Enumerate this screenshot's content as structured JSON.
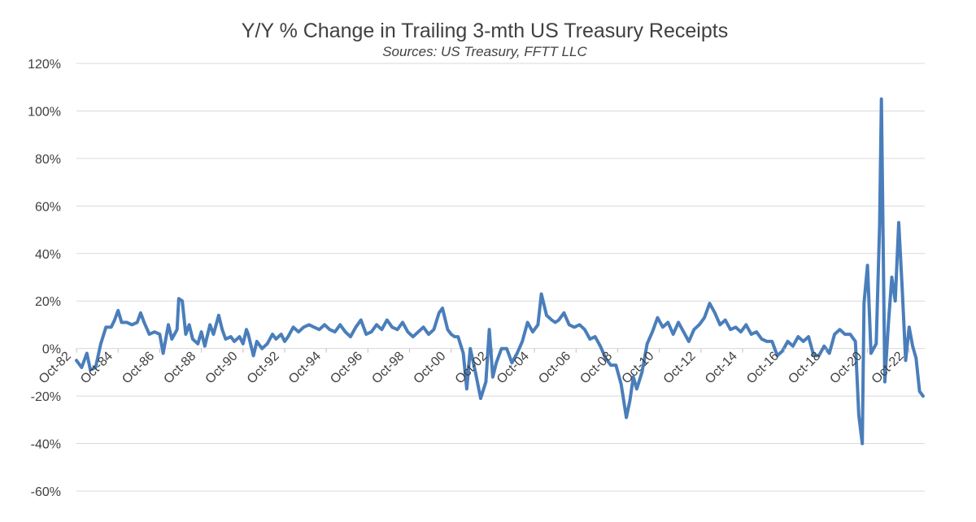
{
  "chart_data": {
    "type": "line",
    "title": "Y/Y % Change in Trailing 3-mth US Treasury Receipts",
    "subtitle": "Sources: US Treasury, FFTT LLC",
    "xlabel": "",
    "ylabel": "",
    "ylim": [
      -60,
      120
    ],
    "yticks": [
      120,
      100,
      80,
      60,
      40,
      20,
      0,
      -20,
      -40,
      -60
    ],
    "ytick_labels": [
      "120%",
      "100%",
      "80%",
      "60%",
      "40%",
      "20%",
      "0%",
      "-20%",
      "-40%",
      "-60%"
    ],
    "xlim": [
      "1982-10",
      "2023-07"
    ],
    "xticks": [
      "1982-10",
      "1984-10",
      "1986-10",
      "1988-10",
      "1990-10",
      "1992-10",
      "1994-10",
      "1996-10",
      "1998-10",
      "2000-10",
      "2002-10",
      "2004-10",
      "2006-10",
      "2008-10",
      "2010-10",
      "2012-10",
      "2014-10",
      "2016-10",
      "2018-10",
      "2020-10",
      "2022-10"
    ],
    "xtick_labels": [
      "Oct-82",
      "Oct-84",
      "Oct-86",
      "Oct-88",
      "Oct-90",
      "Oct-92",
      "Oct-94",
      "Oct-96",
      "Oct-98",
      "Oct-00",
      "Oct-02",
      "Oct-04",
      "Oct-06",
      "Oct-08",
      "Oct-10",
      "Oct-12",
      "Oct-14",
      "Oct-16",
      "Oct-18",
      "Oct-20",
      "Oct-22"
    ],
    "grid": true,
    "legend": "none",
    "series": [
      {
        "color": "#4a7ebb",
        "points": [
          [
            "1982-10",
            -5
          ],
          [
            "1983-01",
            -8
          ],
          [
            "1983-04",
            -2
          ],
          [
            "1983-06",
            -9
          ],
          [
            "1983-09",
            -8
          ],
          [
            "1983-12",
            2
          ],
          [
            "1984-03",
            9
          ],
          [
            "1984-06",
            9
          ],
          [
            "1984-08",
            12
          ],
          [
            "1984-10",
            16
          ],
          [
            "1984-12",
            11
          ],
          [
            "1985-03",
            11
          ],
          [
            "1985-06",
            10
          ],
          [
            "1985-09",
            11
          ],
          [
            "1985-11",
            15
          ],
          [
            "1986-01",
            11
          ],
          [
            "1986-04",
            6
          ],
          [
            "1986-07",
            7
          ],
          [
            "1986-10",
            6
          ],
          [
            "1986-12",
            -2
          ],
          [
            "1987-03",
            10
          ],
          [
            "1987-05",
            4
          ],
          [
            "1987-08",
            8
          ],
          [
            "1987-09",
            21
          ],
          [
            "1987-11",
            20
          ],
          [
            "1988-01",
            6
          ],
          [
            "1988-03",
            10
          ],
          [
            "1988-05",
            4
          ],
          [
            "1988-08",
            2
          ],
          [
            "1988-10",
            7
          ],
          [
            "1988-12",
            1
          ],
          [
            "1989-03",
            10
          ],
          [
            "1989-05",
            6
          ],
          [
            "1989-08",
            14
          ],
          [
            "1989-10",
            8
          ],
          [
            "1989-12",
            4
          ],
          [
            "1990-03",
            5
          ],
          [
            "1990-05",
            3
          ],
          [
            "1990-08",
            5
          ],
          [
            "1990-10",
            2
          ],
          [
            "1990-12",
            8
          ],
          [
            "1991-01",
            6
          ],
          [
            "1991-04",
            -3
          ],
          [
            "1991-06",
            3
          ],
          [
            "1991-09",
            0
          ],
          [
            "1991-12",
            2
          ],
          [
            "1992-03",
            6
          ],
          [
            "1992-05",
            4
          ],
          [
            "1992-08",
            6
          ],
          [
            "1992-10",
            3
          ],
          [
            "1992-12",
            5
          ],
          [
            "1993-03",
            9
          ],
          [
            "1993-06",
            7
          ],
          [
            "1993-09",
            9
          ],
          [
            "1993-12",
            10
          ],
          [
            "1994-03",
            9
          ],
          [
            "1994-06",
            8
          ],
          [
            "1994-09",
            10
          ],
          [
            "1994-12",
            8
          ],
          [
            "1995-03",
            7
          ],
          [
            "1995-06",
            10
          ],
          [
            "1995-09",
            7
          ],
          [
            "1995-12",
            5
          ],
          [
            "1996-03",
            9
          ],
          [
            "1996-06",
            12
          ],
          [
            "1996-09",
            6
          ],
          [
            "1996-12",
            7
          ],
          [
            "1997-03",
            10
          ],
          [
            "1997-06",
            8
          ],
          [
            "1997-09",
            12
          ],
          [
            "1997-12",
            9
          ],
          [
            "1998-03",
            8
          ],
          [
            "1998-06",
            11
          ],
          [
            "1998-09",
            7
          ],
          [
            "1998-12",
            5
          ],
          [
            "1999-03",
            7
          ],
          [
            "1999-06",
            9
          ],
          [
            "1999-09",
            6
          ],
          [
            "1999-12",
            8
          ],
          [
            "2000-03",
            15
          ],
          [
            "2000-05",
            17
          ],
          [
            "2000-08",
            8
          ],
          [
            "2000-10",
            6
          ],
          [
            "2000-12",
            5
          ],
          [
            "2001-02",
            5
          ],
          [
            "2001-05",
            -2
          ],
          [
            "2001-07",
            -17
          ],
          [
            "2001-09",
            0
          ],
          [
            "2001-12",
            -10
          ],
          [
            "2002-03",
            -21
          ],
          [
            "2002-06",
            -14
          ],
          [
            "2002-08",
            8
          ],
          [
            "2002-10",
            -12
          ],
          [
            "2002-12",
            -6
          ],
          [
            "2003-03",
            0
          ],
          [
            "2003-06",
            0
          ],
          [
            "2003-09",
            -6
          ],
          [
            "2003-12",
            -2
          ],
          [
            "2004-03",
            3
          ],
          [
            "2004-06",
            11
          ],
          [
            "2004-09",
            7
          ],
          [
            "2004-12",
            10
          ],
          [
            "2005-02",
            23
          ],
          [
            "2005-05",
            14
          ],
          [
            "2005-08",
            12
          ],
          [
            "2005-10",
            11
          ],
          [
            "2005-12",
            12
          ],
          [
            "2006-03",
            15
          ],
          [
            "2006-06",
            10
          ],
          [
            "2006-09",
            9
          ],
          [
            "2006-12",
            10
          ],
          [
            "2007-03",
            8
          ],
          [
            "2007-06",
            4
          ],
          [
            "2007-09",
            5
          ],
          [
            "2007-12",
            1
          ],
          [
            "2008-03",
            -4
          ],
          [
            "2008-06",
            -7
          ],
          [
            "2008-09",
            -7
          ],
          [
            "2008-12",
            -15
          ],
          [
            "2009-03",
            -29
          ],
          [
            "2009-05",
            -22
          ],
          [
            "2009-07",
            -12
          ],
          [
            "2009-09",
            -17
          ],
          [
            "2009-12",
            -10
          ],
          [
            "2010-03",
            2
          ],
          [
            "2010-06",
            7
          ],
          [
            "2010-09",
            13
          ],
          [
            "2010-12",
            9
          ],
          [
            "2011-03",
            11
          ],
          [
            "2011-06",
            6
          ],
          [
            "2011-09",
            11
          ],
          [
            "2011-12",
            7
          ],
          [
            "2012-03",
            3
          ],
          [
            "2012-06",
            8
          ],
          [
            "2012-09",
            10
          ],
          [
            "2012-12",
            13
          ],
          [
            "2013-03",
            19
          ],
          [
            "2013-06",
            15
          ],
          [
            "2013-09",
            10
          ],
          [
            "2013-12",
            12
          ],
          [
            "2014-03",
            8
          ],
          [
            "2014-06",
            9
          ],
          [
            "2014-09",
            7
          ],
          [
            "2014-12",
            10
          ],
          [
            "2015-03",
            6
          ],
          [
            "2015-06",
            7
          ],
          [
            "2015-09",
            4
          ],
          [
            "2015-12",
            3
          ],
          [
            "2016-03",
            3
          ],
          [
            "2016-06",
            -3
          ],
          [
            "2016-09",
            -1
          ],
          [
            "2016-12",
            3
          ],
          [
            "2017-03",
            1
          ],
          [
            "2017-06",
            5
          ],
          [
            "2017-09",
            3
          ],
          [
            "2017-12",
            5
          ],
          [
            "2018-03",
            -3
          ],
          [
            "2018-06",
            -3
          ],
          [
            "2018-09",
            1
          ],
          [
            "2018-12",
            -2
          ],
          [
            "2019-03",
            6
          ],
          [
            "2019-06",
            8
          ],
          [
            "2019-09",
            6
          ],
          [
            "2019-12",
            6
          ],
          [
            "2020-03",
            3
          ],
          [
            "2020-05",
            -28
          ],
          [
            "2020-07",
            -40
          ],
          [
            "2020-08",
            19
          ],
          [
            "2020-10",
            35
          ],
          [
            "2020-12",
            -2
          ],
          [
            "2021-03",
            2
          ],
          [
            "2021-05",
            52
          ],
          [
            "2021-06",
            105
          ],
          [
            "2021-08",
            -14
          ],
          [
            "2021-10",
            10
          ],
          [
            "2021-12",
            30
          ],
          [
            "2022-02",
            20
          ],
          [
            "2022-04",
            53
          ],
          [
            "2022-06",
            25
          ],
          [
            "2022-08",
            -5
          ],
          [
            "2022-10",
            9
          ],
          [
            "2022-12",
            1
          ],
          [
            "2023-02",
            -4
          ],
          [
            "2023-04",
            -18
          ],
          [
            "2023-06",
            -20
          ]
        ]
      }
    ]
  }
}
